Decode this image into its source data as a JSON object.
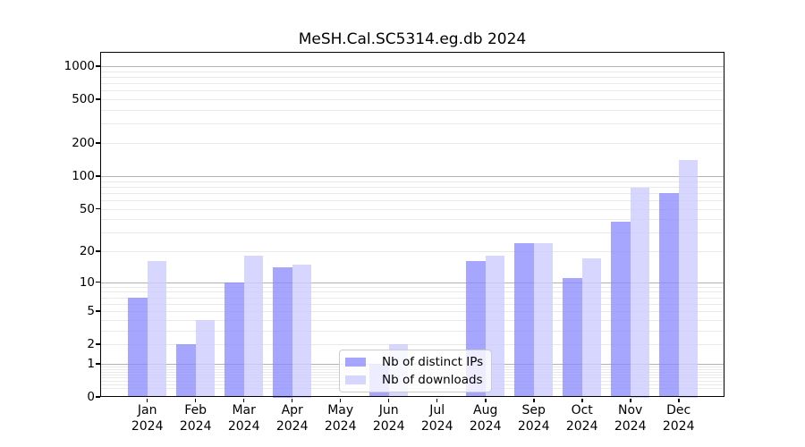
{
  "chart_data": {
    "type": "bar",
    "title": "MeSH.Cal.SC5314.eg.db 2024",
    "categories": [
      {
        "month": "Jan",
        "year": "2024"
      },
      {
        "month": "Feb",
        "year": "2024"
      },
      {
        "month": "Mar",
        "year": "2024"
      },
      {
        "month": "Apr",
        "year": "2024"
      },
      {
        "month": "May",
        "year": "2024"
      },
      {
        "month": "Jun",
        "year": "2024"
      },
      {
        "month": "Jul",
        "year": "2024"
      },
      {
        "month": "Aug",
        "year": "2024"
      },
      {
        "month": "Sep",
        "year": "2024"
      },
      {
        "month": "Oct",
        "year": "2024"
      },
      {
        "month": "Nov",
        "year": "2024"
      },
      {
        "month": "Dec",
        "year": "2024"
      }
    ],
    "series": [
      {
        "name": "Nb of distinct IPs",
        "color": "#8888ff",
        "opacity": 0.75,
        "values": [
          7,
          2,
          10,
          14,
          0,
          1,
          0,
          16,
          24,
          11,
          38,
          70
        ]
      },
      {
        "name": "Nb of downloads",
        "color": "#ccccff",
        "opacity": 0.8,
        "values": [
          16,
          4,
          18,
          15,
          0,
          2,
          0,
          18,
          24,
          17,
          78,
          140
        ]
      }
    ],
    "yscale": "log1p",
    "yticks": [
      1000,
      500,
      200,
      100,
      50,
      20,
      10,
      5,
      2,
      1,
      0
    ],
    "ylim": [
      0,
      1300
    ],
    "grid": {
      "major_color": "#b3b3b3",
      "minor_color": "#e9e9e9"
    },
    "legend": {
      "position": "lower center"
    }
  }
}
